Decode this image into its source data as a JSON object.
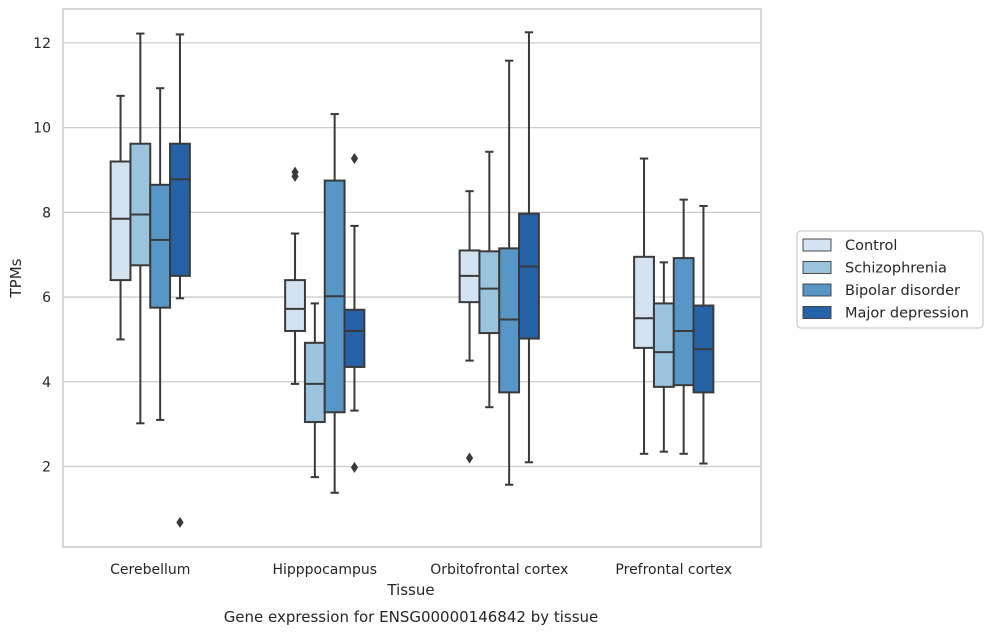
{
  "chart_data": {
    "type": "boxplot",
    "title": "",
    "caption": "Gene expression for ENSG00000146842 by tissue",
    "xlabel": "Tissue",
    "ylabel": "TPMs",
    "ylim": [
      0.1,
      12.8
    ],
    "yticks": [
      2,
      4,
      6,
      8,
      10,
      12
    ],
    "grid": "horizontal",
    "legend_position": "right",
    "categories": [
      "Cerebellum",
      "Hipppocampus",
      "Orbitofrontal cortex",
      "Prefrontal cortex"
    ],
    "series": [
      {
        "name": "Control",
        "color": "#d3e3f2",
        "boxes": [
          {
            "whisker_low": 5.0,
            "q1": 6.4,
            "median": 7.85,
            "q3": 9.2,
            "whisker_high": 10.75,
            "outliers": []
          },
          {
            "whisker_low": 3.95,
            "q1": 5.2,
            "median": 5.72,
            "q3": 6.4,
            "whisker_high": 7.5,
            "outliers": [
              8.85,
              8.95
            ]
          },
          {
            "whisker_low": 4.5,
            "q1": 5.88,
            "median": 6.5,
            "q3": 7.1,
            "whisker_high": 8.5,
            "outliers": [
              2.2
            ]
          },
          {
            "whisker_low": 2.3,
            "q1": 4.8,
            "median": 5.5,
            "q3": 6.95,
            "whisker_high": 9.27,
            "outliers": []
          }
        ]
      },
      {
        "name": "Schizophrenia",
        "color": "#9ac3dd",
        "boxes": [
          {
            "whisker_low": 3.02,
            "q1": 6.75,
            "median": 7.95,
            "q3": 9.62,
            "whisker_high": 12.22,
            "outliers": []
          },
          {
            "whisker_low": 1.75,
            "q1": 3.05,
            "median": 3.95,
            "q3": 4.92,
            "whisker_high": 5.85,
            "outliers": []
          },
          {
            "whisker_low": 3.4,
            "q1": 5.15,
            "median": 6.2,
            "q3": 7.08,
            "whisker_high": 9.43,
            "outliers": []
          },
          {
            "whisker_low": 2.35,
            "q1": 3.88,
            "median": 4.7,
            "q3": 5.85,
            "whisker_high": 6.82,
            "outliers": []
          }
        ]
      },
      {
        "name": "Bipolar disorder",
        "color": "#5697c7",
        "boxes": [
          {
            "whisker_low": 3.1,
            "q1": 5.75,
            "median": 7.35,
            "q3": 8.65,
            "whisker_high": 10.93,
            "outliers": []
          },
          {
            "whisker_low": 1.38,
            "q1": 3.28,
            "median": 6.02,
            "q3": 8.75,
            "whisker_high": 10.32,
            "outliers": []
          },
          {
            "whisker_low": 1.57,
            "q1": 3.75,
            "median": 5.47,
            "q3": 7.15,
            "whisker_high": 11.58,
            "outliers": []
          },
          {
            "whisker_low": 2.3,
            "q1": 3.92,
            "median": 5.2,
            "q3": 6.92,
            "whisker_high": 8.3,
            "outliers": []
          }
        ]
      },
      {
        "name": "Major depression",
        "color": "#2662a8",
        "boxes": [
          {
            "whisker_low": 5.97,
            "q1": 6.5,
            "median": 8.78,
            "q3": 9.62,
            "whisker_high": 12.2,
            "outliers": [
              0.68
            ]
          },
          {
            "whisker_low": 3.32,
            "q1": 4.35,
            "median": 5.2,
            "q3": 5.7,
            "whisker_high": 7.68,
            "outliers": [
              9.27,
              1.98
            ]
          },
          {
            "whisker_low": 2.1,
            "q1": 5.02,
            "median": 6.72,
            "q3": 7.97,
            "whisker_high": 12.25,
            "outliers": []
          },
          {
            "whisker_low": 2.07,
            "q1": 3.75,
            "median": 4.77,
            "q3": 5.8,
            "whisker_high": 8.15,
            "outliers": []
          }
        ]
      }
    ]
  }
}
